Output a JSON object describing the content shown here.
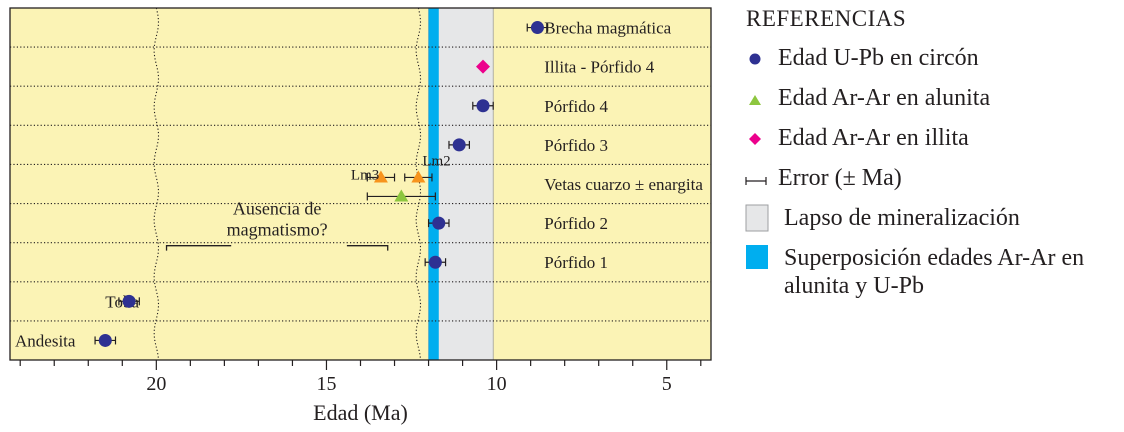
{
  "chart_data": {
    "type": "scatter",
    "title": "",
    "xlabel": "Edad (Ma)",
    "ylabel": "",
    "x_reversed": true,
    "xlim": [
      24.3,
      3.7
    ],
    "xticks": [
      20,
      15,
      10,
      5
    ],
    "xtick_labels": [
      "20",
      "15",
      "10",
      "5"
    ],
    "minor_tick_step": 1,
    "grid": "dotted horizontal row dividers",
    "legend_position": "right",
    "rows": [
      {
        "label": "Brecha magmática"
      },
      {
        "label": "Illita - Pórfido 4"
      },
      {
        "label": "Pórfido 4"
      },
      {
        "label": "Pórfido 3"
      },
      {
        "label": "Vetas cuarzo ± enargita"
      },
      {
        "label": "Pórfido 2"
      },
      {
        "label": "Pórfido 1"
      },
      {
        "label": "Toba"
      },
      {
        "label": "Andesita"
      }
    ],
    "series": [
      {
        "name": "Edad U-Pb en circón",
        "marker": "circle",
        "color": "#2e3192",
        "points": [
          {
            "row": "Brecha magmática",
            "x": 8.8,
            "err": 0.3
          },
          {
            "row": "Pórfido 4",
            "x": 10.4,
            "err": 0.3
          },
          {
            "row": "Pórfido 3",
            "x": 11.1,
            "err": 0.3
          },
          {
            "row": "Pórfido 2",
            "x": 11.7,
            "err": 0.3
          },
          {
            "row": "Pórfido 1",
            "x": 11.8,
            "err": 0.3
          },
          {
            "row": "Toba",
            "x": 20.8,
            "err": 0.3
          },
          {
            "row": "Andesita",
            "x": 21.5,
            "err": 0.3
          }
        ]
      },
      {
        "name": "Edad Ar-Ar en alunita",
        "marker": "triangle",
        "colors": [
          "#f7941d",
          "#8dc63f"
        ],
        "points": [
          {
            "row": "Vetas cuarzo ± enargita",
            "label": "Lm3",
            "x": 13.4,
            "err": 0.4,
            "color": "#f7941d"
          },
          {
            "row": "Vetas cuarzo ± enargita",
            "label": "Lm2",
            "x": 12.3,
            "err": 0.4,
            "color": "#f7941d"
          },
          {
            "row": "Vetas cuarzo ± enargita",
            "x": 12.8,
            "err": 1.0,
            "color": "#8dc63f"
          }
        ]
      },
      {
        "name": "Edad Ar-Ar en illita",
        "marker": "diamond",
        "color": "#ec008c",
        "points": [
          {
            "row": "Illita - Pórfido 4",
            "x": 10.4
          }
        ]
      }
    ],
    "error_label": "Error (± Ma)",
    "shaded_ranges": [
      {
        "name": "Lapso de mineralización",
        "from": 12.0,
        "to": 10.1,
        "color": "#e6e7e8"
      },
      {
        "name": "Superposición edades Ar-Ar en alunita y U-Pb",
        "from": 12.0,
        "to": 11.7,
        "color": "#00aeef"
      }
    ],
    "gap_annotation": {
      "text_line1": "Ausencia de",
      "text_line2": "magmatismo?",
      "from": 19.7,
      "to": 13.2
    },
    "wavy_boundaries": [
      20.0,
      12.3
    ]
  },
  "legend": {
    "title": "REFERENCIAS",
    "items": [
      {
        "label": "Edad U-Pb en circón",
        "icon": "circle-marker"
      },
      {
        "label": "Edad Ar-Ar en alunita",
        "icon": "triangle-marker"
      },
      {
        "label": "Edad Ar-Ar en illita",
        "icon": "diamond-marker"
      },
      {
        "label": "Error (± Ma)",
        "icon": "error-bar"
      },
      {
        "label": "Lapso de mineralización",
        "icon": "grey-box"
      },
      {
        "label": "Superposición edades Ar-Ar en alunita y U-Pb",
        "icon": "cyan-box"
      }
    ]
  },
  "colors": {
    "background": "#fbf3b5",
    "frame": "#231f20",
    "upb": "#2e3192",
    "alunita_orange": "#f7941d",
    "alunita_green": "#8dc63f",
    "illita": "#ec008c",
    "mineralization": "#e6e7e8",
    "overlap": "#00aeef"
  }
}
